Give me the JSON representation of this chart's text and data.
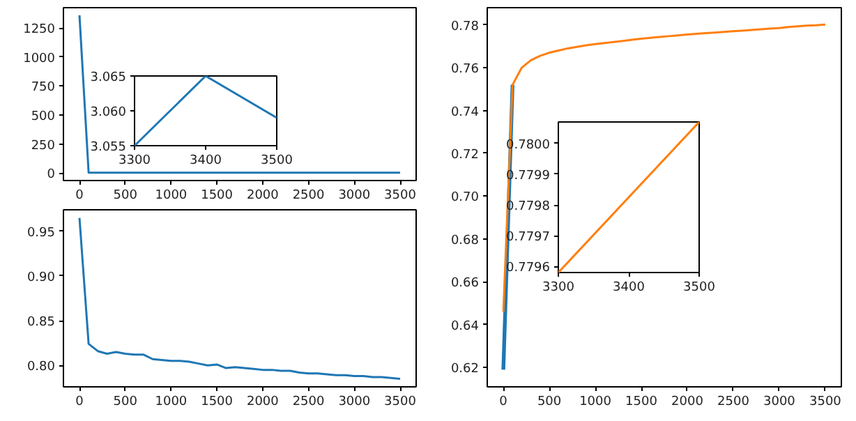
{
  "chart_data": [
    {
      "type": "line",
      "x": [
        0,
        100,
        200,
        300,
        400,
        500,
        600,
        700,
        800,
        900,
        1000,
        1100,
        1200,
        1300,
        1400,
        1500,
        1600,
        1700,
        1800,
        1900,
        2000,
        2100,
        2200,
        2300,
        2400,
        2500,
        2600,
        2700,
        2800,
        2900,
        3000,
        3100,
        3200,
        3300,
        3400,
        3500
      ],
      "series": [
        {
          "color": "#1f77b4",
          "values": [
            1360,
            3,
            3,
            3,
            3,
            3,
            3,
            3,
            3,
            3,
            3,
            3,
            3,
            3,
            3,
            3,
            3,
            3,
            3,
            3,
            3,
            3,
            3,
            3,
            3,
            3,
            3,
            3,
            3,
            3,
            3,
            3,
            3,
            3,
            3,
            3
          ]
        }
      ],
      "xlim": [
        -175,
        3675
      ],
      "ylim": [
        -65,
        1425
      ],
      "xticks": [
        0,
        500,
        1000,
        1500,
        2000,
        2500,
        3000,
        3500
      ],
      "yticks": [
        0,
        250,
        500,
        750,
        1000,
        1250
      ],
      "grid": false
    },
    {
      "type": "line",
      "x": [
        3300,
        3400,
        3500
      ],
      "series": [
        {
          "color": "#1f77b4",
          "values": [
            3.055,
            3.065,
            3.059
          ]
        }
      ],
      "xlim": [
        3300,
        3500
      ],
      "ylim": [
        3.055,
        3.065
      ],
      "xticks": [
        3300,
        3400,
        3500
      ],
      "yticks": [
        {
          "value": 3.055,
          "label": "3.055"
        },
        {
          "value": 3.06,
          "label": "3.060"
        },
        {
          "value": 3.065,
          "label": "3.065"
        }
      ],
      "grid": false
    },
    {
      "type": "line",
      "x": [
        0,
        100,
        200,
        300,
        400,
        500,
        600,
        700,
        800,
        900,
        1000,
        1100,
        1200,
        1300,
        1400,
        1500,
        1600,
        1700,
        1800,
        1900,
        2000,
        2100,
        2200,
        2300,
        2400,
        2500,
        2600,
        2700,
        2800,
        2900,
        3000,
        3100,
        3200,
        3300,
        3400,
        3500
      ],
      "series": [
        {
          "color": "#1f77b4",
          "values": [
            0.965,
            0.824,
            0.816,
            0.813,
            0.815,
            0.813,
            0.812,
            0.812,
            0.807,
            0.806,
            0.805,
            0.805,
            0.804,
            0.802,
            0.8,
            0.801,
            0.797,
            0.798,
            0.797,
            0.796,
            0.795,
            0.795,
            0.794,
            0.794,
            0.792,
            0.791,
            0.791,
            0.79,
            0.789,
            0.789,
            0.788,
            0.788,
            0.787,
            0.787,
            0.786,
            0.785
          ]
        }
      ],
      "xlim": [
        -175,
        3675
      ],
      "ylim": [
        0.776,
        0.974
      ],
      "xticks": [
        0,
        500,
        1000,
        1500,
        2000,
        2500,
        3000,
        3500
      ],
      "yticks": [
        {
          "value": 0.8,
          "label": "0.80"
        },
        {
          "value": 0.85,
          "label": "0.85"
        },
        {
          "value": 0.9,
          "label": "0.90"
        },
        {
          "value": 0.95,
          "label": "0.95"
        }
      ],
      "grid": false
    },
    {
      "type": "line",
      "x": [
        0,
        100,
        200,
        300,
        400,
        500,
        600,
        700,
        800,
        900,
        1000,
        1100,
        1200,
        1300,
        1400,
        1500,
        1600,
        1700,
        1800,
        1900,
        2000,
        2100,
        2200,
        2300,
        2400,
        2500,
        2600,
        2700,
        2800,
        2900,
        3000,
        3100,
        3200,
        3300,
        3400,
        3500
      ],
      "series": [
        {
          "color": "#1f77b4",
          "values": [
            0.619,
            0.752,
            null,
            null,
            null,
            null,
            null,
            null,
            null,
            null,
            null,
            null,
            null,
            null,
            null,
            null,
            null,
            null,
            null,
            null,
            null,
            null,
            null,
            null,
            null,
            null,
            null,
            null,
            null,
            null,
            null,
            null,
            null,
            null,
            null,
            null
          ]
        },
        {
          "color": "#ff7f0e",
          "values": [
            0.646,
            0.752,
            0.76,
            0.7635,
            0.7655,
            0.767,
            0.768,
            0.769,
            0.7697,
            0.7704,
            0.771,
            0.7715,
            0.772,
            0.7725,
            0.773,
            0.7735,
            0.7739,
            0.7743,
            0.7747,
            0.7751,
            0.7755,
            0.7758,
            0.7761,
            0.7764,
            0.7767,
            0.777,
            0.7773,
            0.7776,
            0.7779,
            0.7782,
            0.7785,
            0.779,
            0.7793,
            0.7796,
            0.7798,
            0.7801
          ]
        }
      ],
      "xlim": [
        -175,
        3675
      ],
      "ylim": [
        0.611,
        0.788
      ],
      "xticks": [
        0,
        500,
        1000,
        1500,
        2000,
        2500,
        3000,
        3500
      ],
      "yticks": [
        {
          "value": 0.62,
          "label": "0.62"
        },
        {
          "value": 0.64,
          "label": "0.64"
        },
        {
          "value": 0.66,
          "label": "0.66"
        },
        {
          "value": 0.68,
          "label": "0.68"
        },
        {
          "value": 0.7,
          "label": "0.70"
        },
        {
          "value": 0.72,
          "label": "0.72"
        },
        {
          "value": 0.74,
          "label": "0.74"
        },
        {
          "value": 0.76,
          "label": "0.76"
        },
        {
          "value": 0.78,
          "label": "0.78"
        }
      ],
      "grid": false
    },
    {
      "type": "line",
      "x": [
        3300,
        3500
      ],
      "series": [
        {
          "color": "#ff7f0e",
          "values": [
            0.77958,
            0.78007
          ]
        }
      ],
      "xlim": [
        3300,
        3500
      ],
      "ylim": [
        0.77958,
        0.78007
      ],
      "xticks": [
        3300,
        3400,
        3500
      ],
      "yticks": [
        {
          "value": 0.7796,
          "label": "0.7796"
        },
        {
          "value": 0.7797,
          "label": "0.7797"
        },
        {
          "value": 0.7798,
          "label": "0.7798"
        },
        {
          "value": 0.7799,
          "label": "0.7799"
        },
        {
          "value": 0.78,
          "label": "0.7800"
        }
      ],
      "grid": false
    }
  ]
}
